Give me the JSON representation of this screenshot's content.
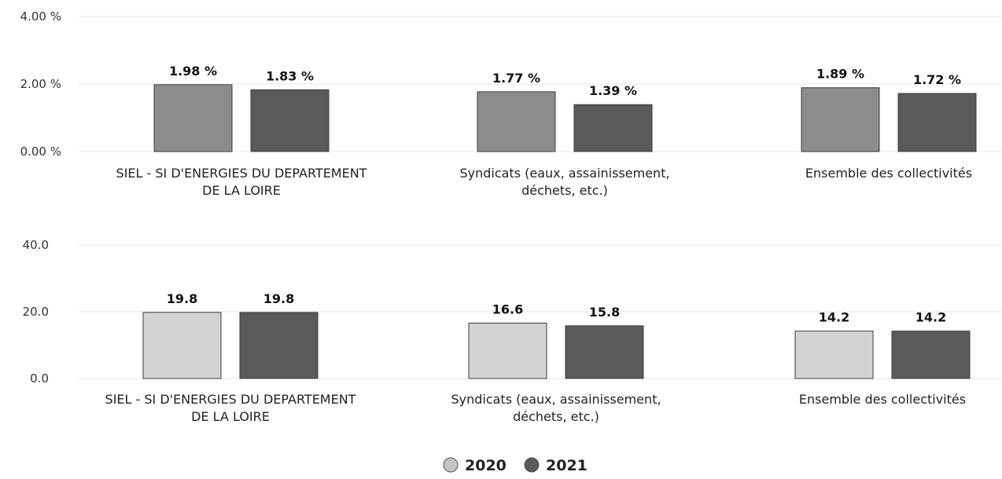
{
  "chart_data": [
    {
      "type": "bar",
      "categories": [
        [
          "SIEL - SI D'ENERGIES DU DEPARTEMENT",
          "DE LA LOIRE"
        ],
        [
          "Syndicats (eaux, assainissement,",
          "déchets, etc.)"
        ],
        [
          "Ensemble des collectivités"
        ]
      ],
      "series": [
        {
          "name": "2020",
          "values": [
            1.98,
            1.77,
            1.89
          ],
          "labels": [
            "1.98 %",
            "1.77 %",
            "1.89 %"
          ],
          "color": "#8c8c8c"
        },
        {
          "name": "2021",
          "values": [
            1.83,
            1.39,
            1.72
          ],
          "labels": [
            "1.83 %",
            "1.39 %",
            "1.72 %"
          ],
          "color": "#5a5a5a"
        }
      ],
      "ylim": [
        0,
        4
      ],
      "yticks": [
        0,
        2,
        4
      ],
      "ytick_labels": [
        "0.00 %",
        "2.00 %",
        "4.00 %"
      ],
      "grid": true
    },
    {
      "type": "bar",
      "categories": [
        [
          "SIEL - SI D'ENERGIES DU DEPARTEMENT",
          "DE LA LOIRE"
        ],
        [
          "Syndicats (eaux, assainissement,",
          "déchets, etc.)"
        ],
        [
          "Ensemble des collectivités"
        ]
      ],
      "series": [
        {
          "name": "2020",
          "values": [
            19.8,
            16.6,
            14.2
          ],
          "labels": [
            "19.8",
            "16.6",
            "14.2"
          ],
          "color": "#d3d3d3"
        },
        {
          "name": "2021",
          "values": [
            19.8,
            15.8,
            14.2
          ],
          "labels": [
            "19.8",
            "15.8",
            "14.2"
          ],
          "color": "#5a5a5a"
        }
      ],
      "ylim": [
        0,
        40
      ],
      "yticks": [
        0,
        20,
        40
      ],
      "ytick_labels": [
        "0.0",
        "20.0",
        "40.0"
      ],
      "grid": true
    }
  ],
  "legend": {
    "position": "bottom",
    "items": [
      {
        "label": "2020",
        "color": "#c4c4c4"
      },
      {
        "label": "2021",
        "color": "#5a5a5a"
      }
    ]
  }
}
